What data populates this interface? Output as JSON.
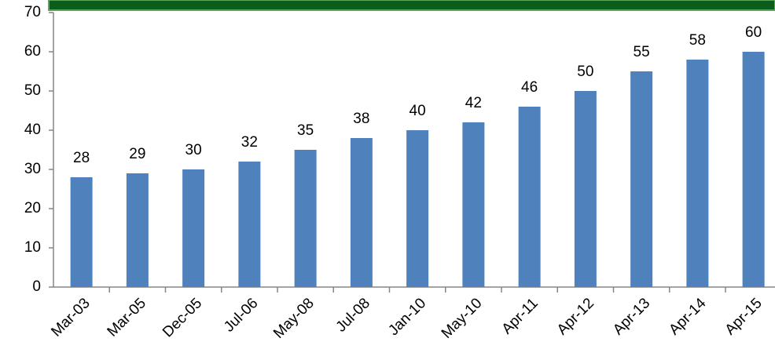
{
  "chart_data": {
    "type": "bar",
    "categories": [
      "Mar-03",
      "Mar-05",
      "Dec-05",
      "Jul-06",
      "May-08",
      "Jul-08",
      "Jan-10",
      "May-10",
      "Apr-11",
      "Apr-12",
      "Apr-13",
      "Apr-14",
      "Apr-15"
    ],
    "values": [
      28,
      29,
      30,
      32,
      35,
      38,
      40,
      42,
      46,
      50,
      55,
      58,
      60
    ],
    "color": "#4f81bd",
    "ylim": [
      0,
      70
    ],
    "yticks": [
      0,
      10,
      20,
      30,
      40,
      50,
      60,
      70
    ],
    "grid": false
  }
}
